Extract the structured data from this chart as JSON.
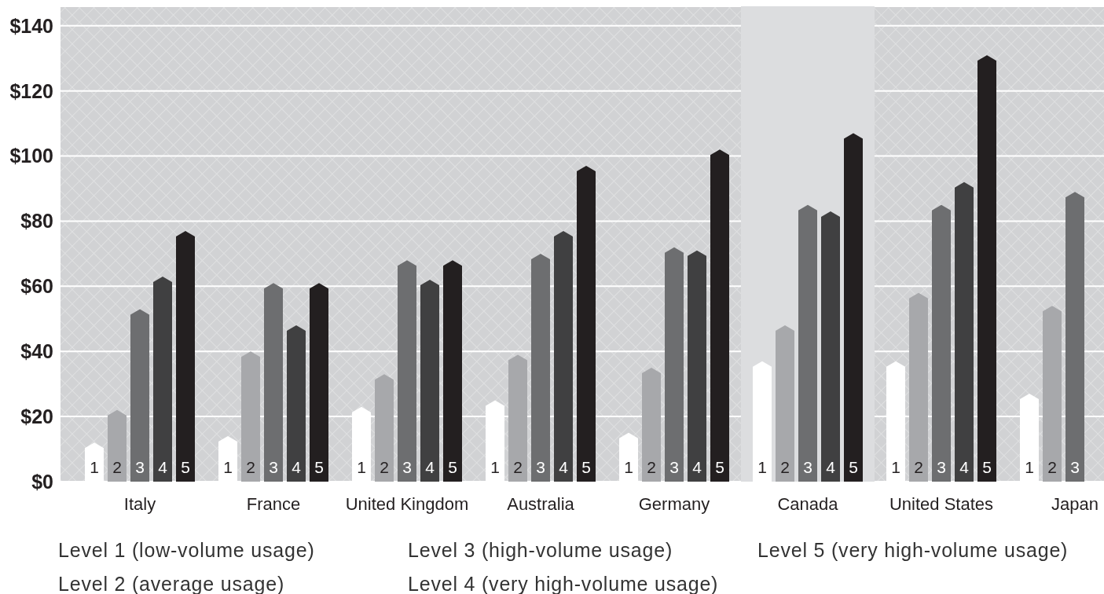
{
  "chart_data": {
    "type": "bar",
    "categories": [
      "Italy",
      "France",
      "United Kingdom",
      "Australia",
      "Germany",
      "Canada",
      "United States",
      "Japan"
    ],
    "series": [
      {
        "name": "1",
        "color": "#ffffff",
        "values": [
          12,
          14,
          23,
          25,
          15,
          37,
          37,
          27
        ]
      },
      {
        "name": "2",
        "color": "#a7a8ab",
        "values": [
          22,
          40,
          33,
          39,
          35,
          48,
          58,
          54
        ]
      },
      {
        "name": "3",
        "color": "#6d6e70",
        "values": [
          53,
          61,
          68,
          70,
          72,
          85,
          85,
          89
        ]
      },
      {
        "name": "4",
        "color": "#404041",
        "values": [
          63,
          48,
          62,
          77,
          71,
          83,
          92,
          null
        ]
      },
      {
        "name": "5",
        "color": "#231f20",
        "values": [
          77,
          61,
          68,
          97,
          102,
          107,
          131,
          null
        ]
      }
    ],
    "ylim": [
      0,
      146
    ],
    "yticks": [
      {
        "value": 0,
        "label": "$0"
      },
      {
        "value": 20,
        "label": "$20"
      },
      {
        "value": 40,
        "label": "$40"
      },
      {
        "value": 60,
        "label": "$60"
      },
      {
        "value": 80,
        "label": "$80"
      },
      {
        "value": 100,
        "label": "$100"
      },
      {
        "value": 120,
        "label": "$120"
      },
      {
        "value": 140,
        "label": "$140"
      }
    ],
    "grid": "y",
    "bands": [
      {
        "axis": "x",
        "from": "Canada",
        "to": "Canada",
        "color": "#dcdddf"
      }
    ],
    "annotations": [
      "Level 1 (low-volume usage)",
      "Level 2 (average usage)",
      "Level 3 (high-volume usage)",
      "Level 4 (very high-volume usage)",
      "Level 5 (very high-volume usage)"
    ]
  }
}
